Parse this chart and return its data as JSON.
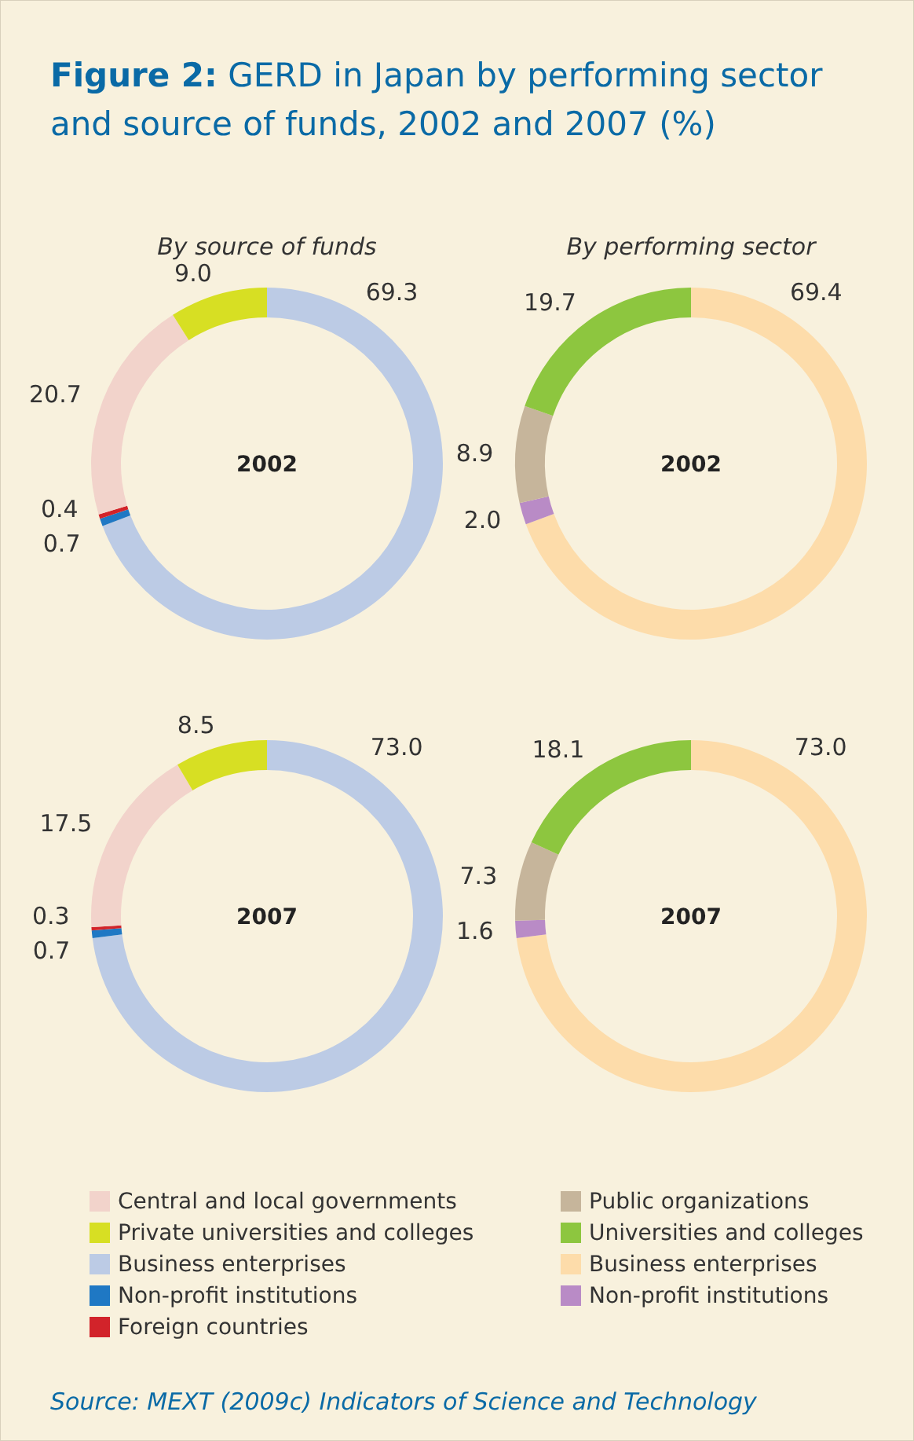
{
  "chart_data": [
    {
      "type": "other",
      "title": "Figure 2: GERD in Japan by performing sector and source of funds, 2002 and 2007 (%)",
      "annotations": [
        "Source: MEXT (2009c) Indicators of Science and Technology"
      ]
    },
    {
      "type": "donut",
      "subtitle": "By source of funds",
      "categories": [
        "Central and local governments",
        "Private universities and colleges",
        "Business enterprises",
        "Non-profit institutions",
        "Foreign countries"
      ],
      "colors": [
        "#f2d3cb",
        "#d7df23",
        "#bccbe5",
        "#1f78c4",
        "#d2232a"
      ],
      "legend": "bottom",
      "series": [
        {
          "name": "2002",
          "values": [
            20.7,
            9.0,
            69.3,
            0.7,
            0.4
          ],
          "value_labels": [
            "20.7",
            "9.0",
            "69.3",
            "0.7",
            "0.4"
          ]
        },
        {
          "name": "2007",
          "values": [
            17.5,
            8.5,
            73.0,
            0.7,
            0.3
          ],
          "value_labels": [
            "17.5",
            "8.5",
            "73.0",
            "0.7",
            "0.3"
          ]
        }
      ]
    },
    {
      "type": "donut",
      "subtitle": "By performing sector",
      "categories": [
        "Public organizations",
        "Universities and colleges",
        "Business enterprises",
        "Non-profit institutions"
      ],
      "colors": [
        "#c6b59b",
        "#8dc63f",
        "#fddcaa",
        "#b98bc6"
      ],
      "legend": "bottom",
      "series": [
        {
          "name": "2002",
          "values": [
            8.9,
            19.7,
            69.4,
            2.0
          ],
          "value_labels": [
            "8.9",
            "19.7",
            "69.4",
            "2.0"
          ]
        },
        {
          "name": "2007",
          "values": [
            7.3,
            18.1,
            73.0,
            1.6
          ],
          "value_labels": [
            "7.3",
            "18.1",
            "73.0",
            "1.6"
          ]
        }
      ]
    }
  ]
}
